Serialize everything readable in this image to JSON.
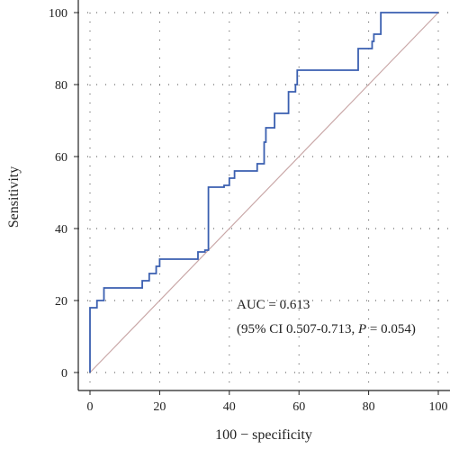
{
  "chart_data": {
    "type": "line",
    "xlabel": "100 − specificity",
    "ylabel": "Sensitivity",
    "xlim": [
      0,
      100
    ],
    "ylim": [
      0,
      100
    ],
    "x_ticks": [
      "0",
      "20",
      "40",
      "60",
      "80",
      "100"
    ],
    "y_ticks": [
      "0",
      "20",
      "40",
      "60",
      "80",
      "100"
    ],
    "grid": "dotted",
    "series": [
      {
        "color": "#3a5fb0",
        "points": [
          [
            0,
            0
          ],
          [
            0,
            18
          ],
          [
            2,
            18
          ],
          [
            2,
            20
          ],
          [
            4,
            20
          ],
          [
            4,
            23.5
          ],
          [
            15,
            23.5
          ],
          [
            15,
            25.5
          ],
          [
            17,
            25.5
          ],
          [
            17,
            27.5
          ],
          [
            19,
            27.5
          ],
          [
            19,
            29.5
          ],
          [
            20,
            29.5
          ],
          [
            20,
            31.5
          ],
          [
            31,
            31.5
          ],
          [
            31,
            33.5
          ],
          [
            33,
            33.5
          ],
          [
            33,
            34
          ],
          [
            34,
            34
          ],
          [
            34,
            51.5
          ],
          [
            38.5,
            51.5
          ],
          [
            38.5,
            52
          ],
          [
            40,
            52
          ],
          [
            40,
            54
          ],
          [
            41.5,
            54
          ],
          [
            41.5,
            56
          ],
          [
            48,
            56
          ],
          [
            48,
            58
          ],
          [
            50,
            58
          ],
          [
            50,
            64
          ],
          [
            50.5,
            64
          ],
          [
            50.5,
            68
          ],
          [
            53,
            68
          ],
          [
            53,
            72
          ],
          [
            57,
            72
          ],
          [
            57,
            78
          ],
          [
            59,
            78
          ],
          [
            59,
            80
          ],
          [
            59.5,
            80
          ],
          [
            59.5,
            84
          ],
          [
            77,
            84
          ],
          [
            77,
            90
          ],
          [
            81,
            90
          ],
          [
            81,
            92
          ],
          [
            81.5,
            92
          ],
          [
            81.5,
            94
          ],
          [
            83.5,
            94
          ],
          [
            83.5,
            100
          ],
          [
            100,
            100
          ]
        ]
      },
      {
        "color": "#c9a7a7",
        "points": [
          [
            0,
            0
          ],
          [
            100,
            100
          ]
        ]
      }
    ],
    "annotation_line1": "AUC = 0.613",
    "annotation_line2_prefix": "(95% CI 0.507-0.713, ",
    "annotation_line2_p": "P",
    "annotation_line2_suffix": " = 0.054)"
  }
}
